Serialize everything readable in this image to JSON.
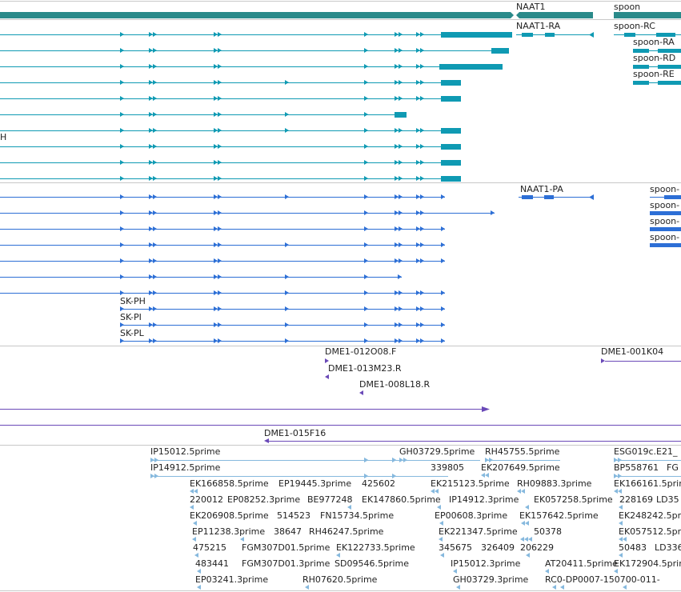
{
  "view": "genome-browser-tracks",
  "colors": {
    "gene": "#2a8a8a",
    "teal": "#0f9ab3",
    "blue": "#2d6fd6",
    "purple": "#6a49b8",
    "lightblue": "#86b9de",
    "divider": "#c8c8c8"
  },
  "gene_track": [
    {
      "label": "NAAT1"
    },
    {
      "label": "spoon"
    }
  ],
  "teal_track": {
    "rows": [
      {
        "label": ""
      },
      {
        "label": ""
      },
      {
        "label": ""
      },
      {
        "label": ""
      },
      {
        "label": ""
      },
      {
        "label": ""
      },
      {
        "label": "H"
      },
      {
        "label": ""
      },
      {
        "label": ""
      },
      {
        "label": ""
      }
    ],
    "right_labels": [
      {
        "label": "NAAT1-RA"
      },
      {
        "label": "spoon-RC"
      },
      {
        "label": "spoon-RA"
      },
      {
        "label": "spoon-RD"
      },
      {
        "label": "spoon-RE"
      }
    ]
  },
  "blue_track": {
    "rows": [
      {
        "label": ""
      },
      {
        "label": ""
      },
      {
        "label": ""
      },
      {
        "label": ""
      },
      {
        "label": ""
      },
      {
        "label": ""
      },
      {
        "label": ""
      },
      {
        "label": "SK-PH"
      },
      {
        "label": "SK-PI"
      },
      {
        "label": "SK-PL"
      }
    ],
    "right_labels": [
      {
        "label": "NAAT1-PA"
      },
      {
        "label": "spoon-"
      },
      {
        "label": "spoon-"
      },
      {
        "label": "spoon-"
      },
      {
        "label": "spoon-"
      }
    ]
  },
  "bac_track": [
    {
      "label": "DME1-012O08.F"
    },
    {
      "label": "DME1-013M23.R"
    },
    {
      "label": "DME1-008L18.R"
    },
    {
      "label": "DME1-001K04"
    },
    {
      "label": "DME1-015F16"
    }
  ],
  "est_track": [
    {
      "label": "IP15012.5prime"
    },
    {
      "label": "IP14912.5prime"
    },
    {
      "label": "GH03729.5prime"
    },
    {
      "label": "RH45755.5prime"
    },
    {
      "label": "ESG019c.E21_"
    },
    {
      "label": "339805"
    },
    {
      "label": "EK207649.5prime"
    },
    {
      "label": "BP558761"
    },
    {
      "label": "FG"
    },
    {
      "label": "EK166858.5prime"
    },
    {
      "label": "EP19445.3prime"
    },
    {
      "label": "425602"
    },
    {
      "label": "EK215123.5prime"
    },
    {
      "label": "RH09883.3prime"
    },
    {
      "label": "EK166161.5prime"
    },
    {
      "label": "220012"
    },
    {
      "label": "EP08252.3prime"
    },
    {
      "label": "BE977248"
    },
    {
      "label": "EK147860.5prime"
    },
    {
      "label": "IP14912.3prime"
    },
    {
      "label": "EK057258.5prime"
    },
    {
      "label": "228169"
    },
    {
      "label": "LD35"
    },
    {
      "label": "EK206908.5prime"
    },
    {
      "label": "514523"
    },
    {
      "label": "FN15734.5prime"
    },
    {
      "label": "EP00608.3prime"
    },
    {
      "label": "EK157642.5prime"
    },
    {
      "label": "EK248242.5prime"
    },
    {
      "label": "EP11238.3prime"
    },
    {
      "label": "38647"
    },
    {
      "label": "RH46247.5prime"
    },
    {
      "label": "EK221347.5prime"
    },
    {
      "label": "50378"
    },
    {
      "label": "EK057512.5prime"
    },
    {
      "label": "475215"
    },
    {
      "label": "FGM307D01.5prime"
    },
    {
      "label": "EK122733.5prime"
    },
    {
      "label": "345675"
    },
    {
      "label": "326409"
    },
    {
      "label": "206229"
    },
    {
      "label": "50483"
    },
    {
      "label": "LD336"
    },
    {
      "label": "483441"
    },
    {
      "label": "FGM307D01.3prime"
    },
    {
      "label": "SD09546.5prime"
    },
    {
      "label": "IP15012.3prime"
    },
    {
      "label": "AT20411.5prime"
    },
    {
      "label": "EK172904.5prime"
    },
    {
      "label": "EP03241.3prime"
    },
    {
      "label": "RH07620.5prime"
    },
    {
      "label": "GH03729.3prime"
    },
    {
      "label": "RC0-DP0007-150700-011-"
    }
  ]
}
